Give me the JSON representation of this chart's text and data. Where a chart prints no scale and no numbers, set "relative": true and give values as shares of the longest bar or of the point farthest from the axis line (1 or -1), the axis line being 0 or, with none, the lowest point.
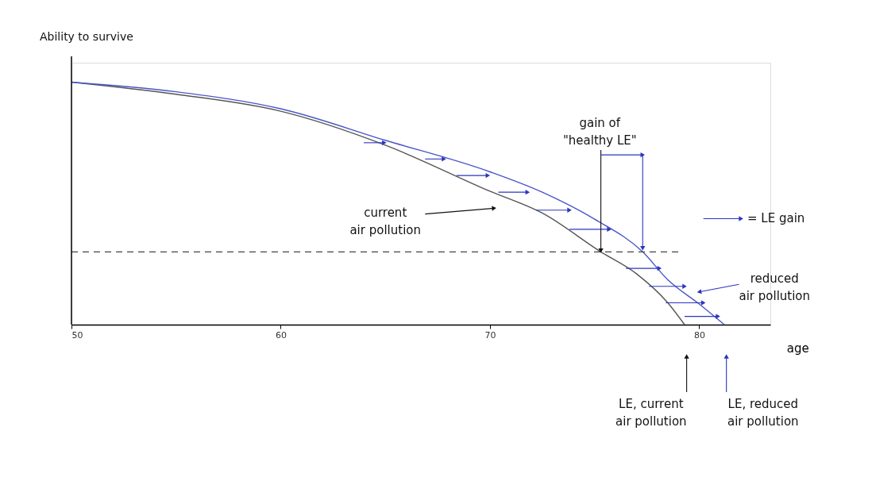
{
  "chart_data": {
    "type": "line",
    "relative": true,
    "xlabel": "age",
    "ylabel": "Ability to survive",
    "xlim": [
      50,
      83.4
    ],
    "xticks": [
      50,
      60,
      70,
      80
    ],
    "line_style": "solid",
    "series": [
      {
        "color": "#555555",
        "x": [
          50,
          55,
          60,
          65,
          70,
          72.5,
          75.3,
          77,
          78.5,
          79.3
        ],
        "values": [
          1.0,
          0.95,
          0.88,
          0.74,
          0.55,
          0.46,
          0.3,
          0.21,
          0.09,
          0
        ]
      },
      {
        "color": "#4a55c8",
        "x": [
          50,
          55,
          60,
          65,
          70,
          72.5,
          75,
          77.3,
          78.5,
          80,
          81.2
        ],
        "values": [
          1.0,
          0.96,
          0.89,
          0.76,
          0.63,
          0.546,
          0.435,
          0.3,
          0.185,
          0.085,
          0
        ]
      }
    ],
    "ref_lines": [
      {
        "axis": "y",
        "value": 0.3,
        "color": "#444444",
        "line_style": "dashed"
      }
    ],
    "annotations": [
      "gain of\n\"healthy LE\"",
      "current\nair pollution",
      "= LE gain",
      "reduced\nair pollution",
      "LE, current\nair pollution",
      "LE, reduced\nair pollution"
    ]
  }
}
